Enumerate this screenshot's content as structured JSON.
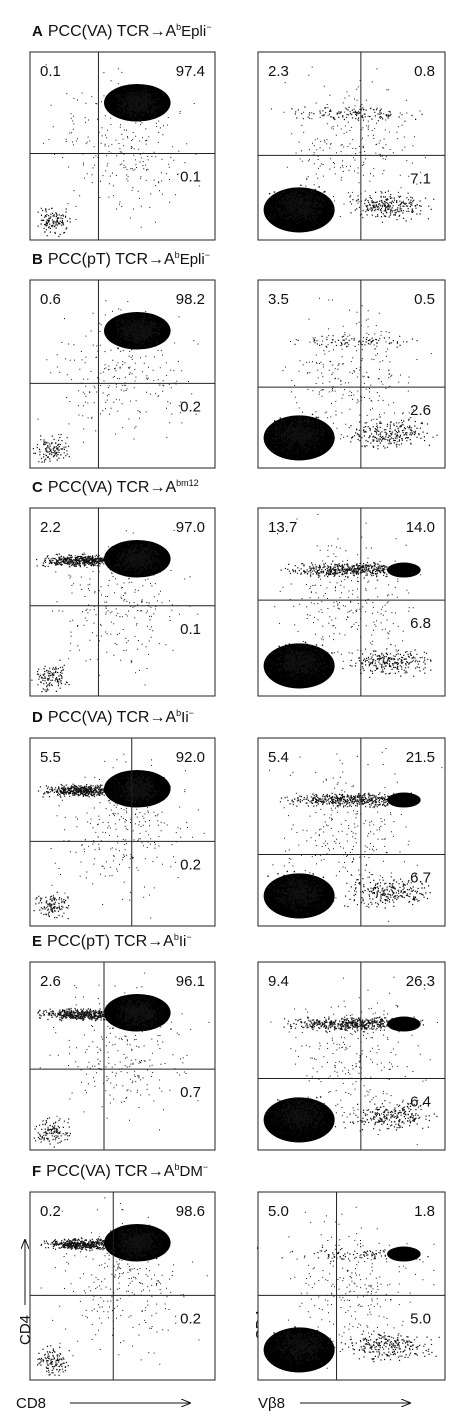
{
  "panels": [
    {
      "letter": "A",
      "title": {
        "main": "PCC(VA) TCR→A",
        "sup": "b",
        "rest": "Epli",
        "rest_sup": "−"
      },
      "left": {
        "ul": "0.1",
        "ur": "97.4",
        "lr": "0.1"
      },
      "right": {
        "ul": "2.3",
        "ur": "0.8",
        "lr": "7.1"
      }
    },
    {
      "letter": "B",
      "title": {
        "main": "PCC(pT) TCR→A",
        "sup": "b",
        "rest": "Epli",
        "rest_sup": "−"
      },
      "left": {
        "ul": "0.6",
        "ur": "98.2",
        "lr": "0.2"
      },
      "right": {
        "ul": "3.5",
        "ur": "0.5",
        "lr": "2.6"
      }
    },
    {
      "letter": "C",
      "title": {
        "main": "PCC(VA) TCR→A",
        "sup": "bm12"
      },
      "left": {
        "ul": "2.2",
        "ur": "97.0",
        "lr": "0.1"
      },
      "right": {
        "ul": "13.7",
        "ur": "14.0",
        "lr": "6.8"
      }
    },
    {
      "letter": "D",
      "title": {
        "main": "PCC(VA) TCR→A",
        "sup": "b",
        "rest": "Ii",
        "rest_sup": "−"
      },
      "left": {
        "ul": "5.5",
        "ur": "92.0",
        "lr": "0.2"
      },
      "right": {
        "ul": "5.4",
        "ur": "21.5",
        "lr": "6.7"
      }
    },
    {
      "letter": "E",
      "title": {
        "main": "PCC(pT) TCR→A",
        "sup": "b",
        "rest": "Ii",
        "rest_sup": "−"
      },
      "left": {
        "ul": "2.6",
        "ur": "96.1",
        "lr": "0.7"
      },
      "right": {
        "ul": "9.4",
        "ur": "26.3",
        "lr": "6.4"
      }
    },
    {
      "letter": "F",
      "title": {
        "main": "PCC(VA) TCR→A",
        "sup": "b",
        "rest": "DM",
        "rest_sup": "−"
      },
      "left": {
        "ul": "0.2",
        "ur": "98.6",
        "lr": "0.2"
      },
      "right": {
        "ul": "5.0",
        "ur": "1.8",
        "lr": "5.0"
      }
    }
  ],
  "axis_labels": {
    "left_y": "CD4",
    "left_x": "CD8",
    "right_y": "CD4",
    "right_x": "Vβ8"
  }
}
